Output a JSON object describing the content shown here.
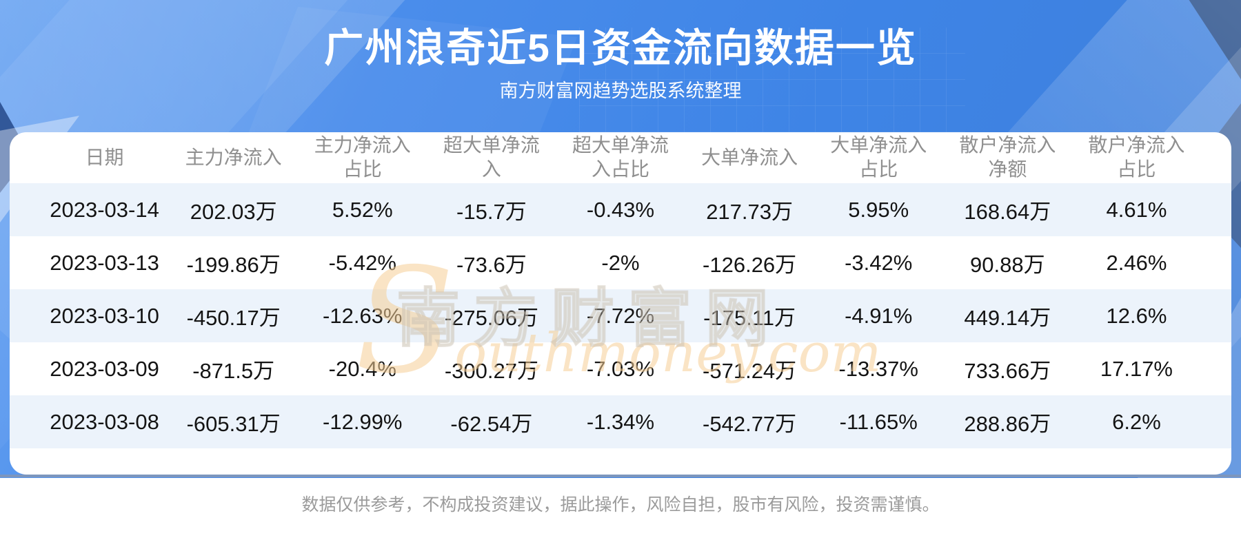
{
  "header": {
    "title": "广州浪奇近5日资金流向数据一览",
    "subtitle": "南方财富网趋势选股系统整理"
  },
  "table": {
    "columns": [
      {
        "line1": "日期",
        "line2": ""
      },
      {
        "line1": "主力净流入",
        "line2": ""
      },
      {
        "line1": "主力净流入",
        "line2": "占比"
      },
      {
        "line1": "超大单净流",
        "line2": "入"
      },
      {
        "line1": "超大单净流",
        "line2": "入占比"
      },
      {
        "line1": "大单净流入",
        "line2": ""
      },
      {
        "line1": "大单净流入",
        "line2": "占比"
      },
      {
        "line1": "散户净流入",
        "line2": "净额"
      },
      {
        "line1": "散户净流入",
        "line2": "占比"
      }
    ]
  },
  "chart_data": {
    "type": "table",
    "title": "广州浪奇近5日资金流向数据一览",
    "subtitle": "南方财富网趋势选股系统整理",
    "columns": [
      "日期",
      "主力净流入",
      "主力净流入占比",
      "超大单净流入",
      "超大单净流入占比",
      "大单净流入",
      "大单净流入占比",
      "散户净流入净额",
      "散户净流入占比"
    ],
    "rows": [
      [
        "2023-03-14",
        "202.03万",
        "5.52%",
        "-15.7万",
        "-0.43%",
        "217.73万",
        "5.95%",
        "168.64万",
        "4.61%"
      ],
      [
        "2023-03-13",
        "-199.86万",
        "-5.42%",
        "-73.6万",
        "-2%",
        "-126.26万",
        "-3.42%",
        "90.88万",
        "2.46%"
      ],
      [
        "2023-03-10",
        "-450.17万",
        "-12.63%",
        "-275.06万",
        "-7.72%",
        "-175.11万",
        "-4.91%",
        "449.14万",
        "12.6%"
      ],
      [
        "2023-03-09",
        "-871.5万",
        "-20.4%",
        "-300.27万",
        "-7.03%",
        "-571.24万",
        "-13.37%",
        "733.66万",
        "17.17%"
      ],
      [
        "2023-03-08",
        "-605.31万",
        "-12.99%",
        "-62.54万",
        "-1.34%",
        "-542.77万",
        "-11.65%",
        "288.86万",
        "6.2%"
      ]
    ]
  },
  "watermark": {
    "cn": "南方财富网",
    "en": "Southmoney.com"
  },
  "footer": {
    "disclaimer": "数据仅供参考，不构成投资建议，据此操作，风险自担，股市有风险，投资需谨慎。"
  },
  "colors": {
    "hero_blue": "#4187e6",
    "hero_blue_light": "#6aa4f2",
    "hero_blue_deep": "#3f7fd9",
    "dark_accent": "#20457f",
    "row_stripe": "#ecf3fb",
    "header_text": "#8f8f8f",
    "cell_text": "#141414",
    "title_text": "#ffffff",
    "disclaimer_text": "#9b9b9b",
    "watermark_orange": "#f6ce96",
    "bottom_line": "#7d96bd"
  }
}
